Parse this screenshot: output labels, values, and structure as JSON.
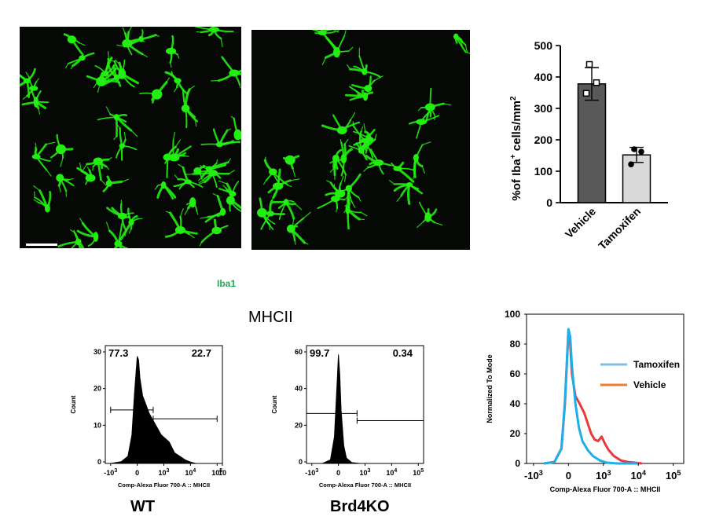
{
  "panels": {
    "micrographs": {
      "stain_label": "Iba1",
      "stain_color": "#22aa55",
      "cell_color": "#22ee11"
    },
    "bar_chart": {
      "chart_data": {
        "type": "bar",
        "categories": [
          "Vehicle",
          "Tamoxifen"
        ],
        "values": [
          378,
          152
        ],
        "errors": [
          52,
          24
        ],
        "points": [
          [
            440,
            382,
            348
          ],
          [
            170,
            162,
            122
          ]
        ],
        "ylabel_parts": [
          "%of Iba",
          "+",
          " cells/mm",
          "2"
        ],
        "yticks": [
          0,
          100,
          200,
          300,
          400,
          500
        ],
        "ylim": [
          0,
          500
        ],
        "bar_colors": [
          "#595959",
          "#d9d9d9"
        ],
        "point_markers": [
          "open-square",
          "filled-circle"
        ]
      }
    },
    "flow_section_title": "MHCII",
    "histograms": [
      {
        "label": "WT",
        "ylabel": "Count",
        "xlabel": "Comp-Alexa Fluor 700-A :: MHCII",
        "yticks": [
          "0",
          "10",
          "20",
          "30"
        ],
        "xtick_bases": [
          "-10",
          "0",
          "10",
          "10",
          "10",
          "10"
        ],
        "xtick_exps": [
          "3",
          "",
          "3",
          "4",
          "5",
          ""
        ],
        "gate_left": "77.3",
        "gate_right": "22.7",
        "chart_data": {
          "type": "area",
          "x": [
            -1.0,
            -0.6,
            -0.35,
            -0.2,
            -0.1,
            0.0,
            0.05,
            0.1,
            0.2,
            0.3,
            0.45,
            0.6,
            0.75,
            0.9,
            1.05,
            1.2,
            1.4,
            1.6,
            1.8,
            2.0,
            2.2
          ],
          "y": [
            0,
            0.5,
            2,
            8,
            20,
            30,
            29,
            24,
            19,
            17,
            14,
            12,
            10,
            8,
            7,
            6,
            3,
            2,
            1,
            0.4,
            0
          ],
          "ylim": [
            0,
            33
          ],
          "gates": [
            {
              "from": -1.0,
              "to": 0.6,
              "y": 15
            },
            {
              "from": 0.6,
              "to": 3.0,
              "y": 12.5
            }
          ]
        }
      },
      {
        "label": "Brd4KO",
        "ylabel": "Count",
        "xlabel": "Comp-Alexa Fluor 700-A :: MHCII",
        "yticks": [
          "0",
          "20",
          "40",
          "60"
        ],
        "xtick_bases": [
          "-10",
          "0",
          "10",
          "10",
          "10"
        ],
        "xtick_exps": [
          "3",
          "",
          "3",
          "4",
          "5"
        ],
        "gate_left": "99.7",
        "gate_right": "0.34",
        "chart_data": {
          "type": "area",
          "x": [
            -0.6,
            -0.3,
            -0.15,
            -0.05,
            0.0,
            0.05,
            0.1,
            0.2,
            0.3,
            0.5,
            0.8
          ],
          "y": [
            0,
            2,
            15,
            45,
            61,
            50,
            30,
            10,
            3,
            0.5,
            0
          ],
          "ylim": [
            0,
            66
          ],
          "gates": [
            {
              "from": -1.2,
              "to": 0.7,
              "y": 28
            },
            {
              "from": 0.7,
              "to": 3.2,
              "y": 24
            }
          ]
        }
      }
    ],
    "overlay": {
      "ylabel": "Normalized To Mode",
      "xlabel": "Comp-Alexa Fluor 700-A :: MHCII",
      "yticks": [
        "0",
        "20",
        "40",
        "60",
        "80",
        "100"
      ],
      "xtick_bases": [
        "-10",
        "0",
        "10",
        "10",
        "10"
      ],
      "xtick_exps": [
        "3",
        "",
        "3",
        "4",
        "5"
      ],
      "legend": [
        {
          "name": "Tamoxifen",
          "color": "#7fbfe6"
        },
        {
          "name": "Vehicle",
          "color": "#ed7d31"
        }
      ],
      "chart_data": {
        "type": "line",
        "ylim": [
          0,
          100
        ],
        "series": [
          {
            "name": "Vehicle",
            "color": "#e83a3a",
            "x": [
              -0.7,
              -0.4,
              -0.2,
              -0.1,
              0.0,
              0.05,
              0.1,
              0.2,
              0.3,
              0.45,
              0.55,
              0.65,
              0.75,
              0.85,
              0.95,
              1.05,
              1.15,
              1.3,
              1.5,
              1.7,
              1.9,
              2.1
            ],
            "y": [
              0,
              1,
              10,
              40,
              89,
              80,
              60,
              45,
              41,
              34,
              27,
              20,
              16,
              15,
              18,
              13,
              9,
              5,
              2,
              1,
              0.5,
              0
            ]
          },
          {
            "name": "Tamoxifen",
            "color": "#1eaee8",
            "x": [
              -0.7,
              -0.4,
              -0.2,
              -0.1,
              0.0,
              0.05,
              0.1,
              0.2,
              0.3,
              0.4,
              0.55,
              0.7,
              0.9,
              1.1,
              1.4,
              2.0
            ],
            "y": [
              0,
              1,
              10,
              42,
              90,
              85,
              65,
              40,
              24,
              15,
              9,
              5,
              2,
              0.5,
              0,
              0
            ]
          }
        ]
      }
    }
  }
}
